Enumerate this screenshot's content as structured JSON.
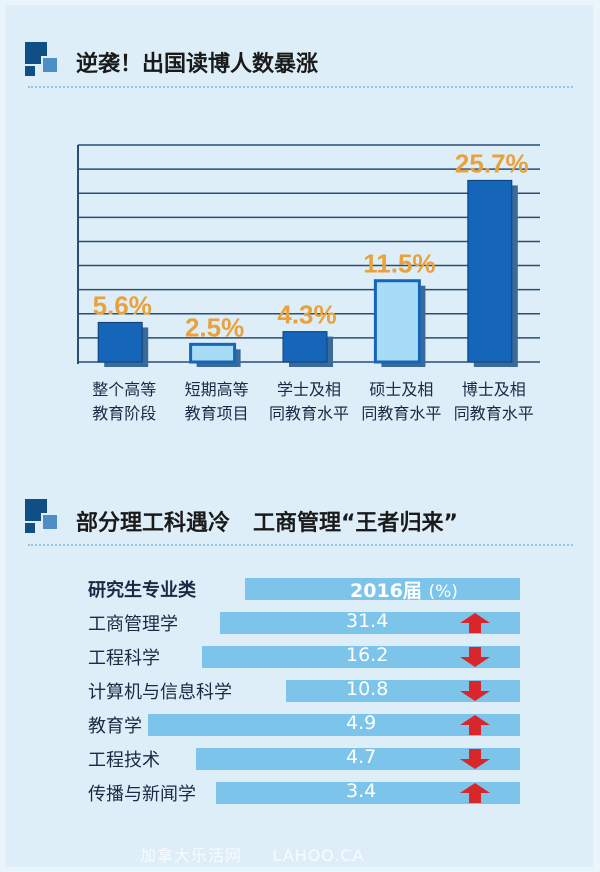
{
  "section1": {
    "title": "逆袭！出国读博人数暴涨"
  },
  "chart_data": {
    "type": "bar",
    "categories": [
      [
        "整个高等",
        "教育阶段"
      ],
      [
        "短期高等",
        "教育项目"
      ],
      [
        "学士及相",
        "同教育水平"
      ],
      [
        "硕士及相",
        "同教育水平"
      ],
      [
        "博士及相",
        "同教育水平"
      ]
    ],
    "values": [
      5.6,
      2.5,
      4.3,
      11.5,
      25.7
    ],
    "labels": [
      "5.6%",
      "2.5%",
      "4.3%",
      "11.5%",
      "25.7%"
    ],
    "highlight": [
      false,
      true,
      false,
      true,
      false
    ],
    "ylim": [
      0,
      30
    ],
    "grid": true,
    "colors": {
      "bar": "#1565b8",
      "bar_dark": "#0d3f78",
      "bar_light": "#a7dcf7",
      "label": "#e9a23b",
      "grid": "#2a4d75"
    }
  },
  "section2": {
    "title": "部分理工科遇冷   工商管理“王者归来”"
  },
  "table": {
    "header": {
      "label": "研究生专业类",
      "col": "2016届",
      "unit": "(%)"
    },
    "rows": [
      {
        "label": "工商管理学",
        "value": "31.4",
        "trend": "up"
      },
      {
        "label": "工程科学",
        "value": "16.2",
        "trend": "down"
      },
      {
        "label": "计算机与信息科学",
        "value": "10.8",
        "trend": "down"
      },
      {
        "label": "教育学",
        "value": "4.9",
        "trend": "up"
      },
      {
        "label": "工程技术",
        "value": "4.7",
        "trend": "down"
      },
      {
        "label": "传播与新闻学",
        "value": "3.4",
        "trend": "up"
      }
    ],
    "colors": {
      "bar": "#7cc4ea",
      "arrow": "#d9262b"
    }
  },
  "watermark": "加拿大乐活网     LAHOO.CA"
}
